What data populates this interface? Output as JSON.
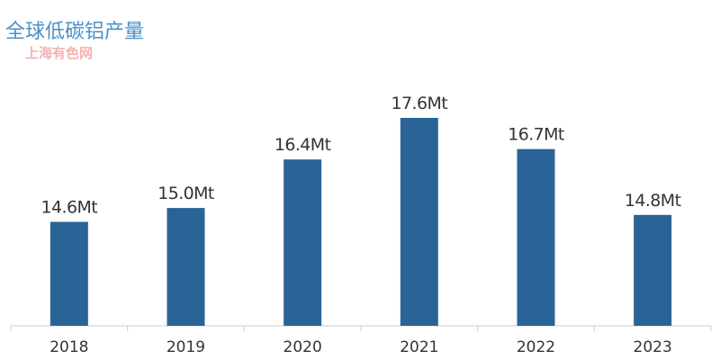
{
  "watermark": "上海有色网",
  "chart_data": {
    "type": "bar",
    "title": "全球低碳铝产量",
    "categories": [
      "2018",
      "2019",
      "2020",
      "2021",
      "2022",
      "2023"
    ],
    "values": [
      14.6,
      15.0,
      16.4,
      17.6,
      16.7,
      14.8
    ],
    "data_labels": [
      "14.6Mt",
      "15.0Mt",
      "16.4Mt",
      "17.6Mt",
      "16.7Mt",
      "14.8Mt"
    ],
    "unit": "Mt",
    "ylim": [
      11.6,
      17.6
    ],
    "y_axis_visible": false,
    "grid": false,
    "legend": "none",
    "bar_color": "#2a6496",
    "axis_color": "#cccccc",
    "title_color": "#4a90c8"
  }
}
